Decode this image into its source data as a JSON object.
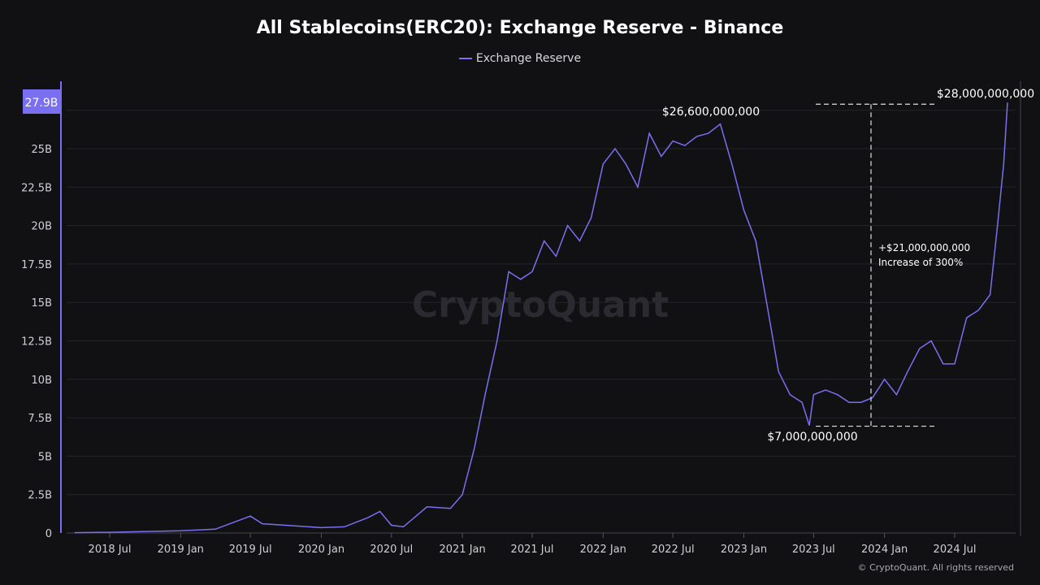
{
  "chart_data": {
    "type": "line",
    "title": "All Stablecoins(ERC20): Exchange Reserve - Binance",
    "legend": "top-center",
    "series": [
      {
        "name": "Exchange Reserve",
        "color": "#7a6ff0",
        "points": [
          [
            "2018-04-01",
            0.02
          ],
          [
            "2018-07-01",
            0.05
          ],
          [
            "2019-01-01",
            0.15
          ],
          [
            "2019-04-01",
            0.25
          ],
          [
            "2019-07-01",
            1.1
          ],
          [
            "2019-08-01",
            0.6
          ],
          [
            "2019-10-01",
            0.5
          ],
          [
            "2020-01-01",
            0.35
          ],
          [
            "2020-03-01",
            0.4
          ],
          [
            "2020-05-01",
            1.0
          ],
          [
            "2020-06-01",
            1.4
          ],
          [
            "2020-07-01",
            0.5
          ],
          [
            "2020-08-01",
            0.4
          ],
          [
            "2020-10-01",
            1.7
          ],
          [
            "2020-12-01",
            1.6
          ],
          [
            "2021-01-01",
            2.5
          ],
          [
            "2021-02-01",
            5.5
          ],
          [
            "2021-03-01",
            9
          ],
          [
            "2021-04-01",
            12.5
          ],
          [
            "2021-05-01",
            17
          ],
          [
            "2021-06-01",
            16.5
          ],
          [
            "2021-07-01",
            17
          ],
          [
            "2021-08-01",
            19
          ],
          [
            "2021-09-01",
            18
          ],
          [
            "2021-10-01",
            20
          ],
          [
            "2021-11-01",
            19
          ],
          [
            "2021-12-01",
            20.5
          ],
          [
            "2022-01-01",
            24
          ],
          [
            "2022-02-01",
            25
          ],
          [
            "2022-03-01",
            24
          ],
          [
            "2022-04-01",
            22.5
          ],
          [
            "2022-05-01",
            26
          ],
          [
            "2022-06-01",
            24.5
          ],
          [
            "2022-07-01",
            25.5
          ],
          [
            "2022-08-01",
            25.2
          ],
          [
            "2022-09-01",
            25.8
          ],
          [
            "2022-10-01",
            26
          ],
          [
            "2022-11-01",
            26.6
          ],
          [
            "2022-12-01",
            24
          ],
          [
            "2023-01-01",
            21
          ],
          [
            "2023-02-01",
            19
          ],
          [
            "2023-03-01",
            15
          ],
          [
            "2023-04-01",
            10.5
          ],
          [
            "2023-05-01",
            9
          ],
          [
            "2023-06-01",
            8.5
          ],
          [
            "2023-06-20",
            7.0
          ],
          [
            "2023-07-01",
            9
          ],
          [
            "2023-08-01",
            9.3
          ],
          [
            "2023-09-01",
            9.0
          ],
          [
            "2023-10-01",
            8.5
          ],
          [
            "2023-11-01",
            8.5
          ],
          [
            "2023-12-01",
            8.8
          ],
          [
            "2024-01-01",
            10
          ],
          [
            "2024-02-01",
            9
          ],
          [
            "2024-03-01",
            10.5
          ],
          [
            "2024-04-01",
            12
          ],
          [
            "2024-05-01",
            12.5
          ],
          [
            "2024-06-01",
            11
          ],
          [
            "2024-07-01",
            11
          ],
          [
            "2024-08-01",
            14
          ],
          [
            "2024-09-01",
            14.5
          ],
          [
            "2024-10-01",
            15.5
          ],
          [
            "2024-10-20",
            20
          ],
          [
            "2024-11-05",
            24
          ],
          [
            "2024-11-15",
            28
          ]
        ]
      }
    ],
    "y_unit": "B",
    "ylim": [
      0,
      27.5
    ],
    "yticks": [
      "0",
      "2.5B",
      "5B",
      "7.5B",
      "10B",
      "12.5B",
      "15B",
      "17.5B",
      "20B",
      "22.5B",
      "25B"
    ],
    "ytick_values": [
      0,
      2.5,
      5,
      7.5,
      10,
      12.5,
      15,
      17.5,
      20,
      22.5,
      25
    ],
    "xticks": [
      "2018 Jul",
      "2019 Jan",
      "2019 Jul",
      "2020 Jan",
      "2020 Jul",
      "2021 Jan",
      "2021 Jul",
      "2022 Jan",
      "2022 Jul",
      "2023 Jan",
      "2023 Jul",
      "2024 Jan",
      "2024 Jul"
    ],
    "xtick_dates": [
      "2018-07-01",
      "2019-01-01",
      "2019-07-01",
      "2020-01-01",
      "2020-07-01",
      "2021-01-01",
      "2021-07-01",
      "2022-01-01",
      "2022-07-01",
      "2023-01-01",
      "2023-07-01",
      "2024-01-01",
      "2024-07-01"
    ],
    "grid": true,
    "last_value_label": "27.9B",
    "annotations": {
      "peak": "$26,600,000,000",
      "low": "$7,000,000,000",
      "high": "$28,000,000,000",
      "change": "+$21,000,000,000",
      "change_pct": "Increase of 300%"
    }
  },
  "watermark": "CryptoQuant",
  "copyright": "© CryptoQuant. All rights reserved"
}
